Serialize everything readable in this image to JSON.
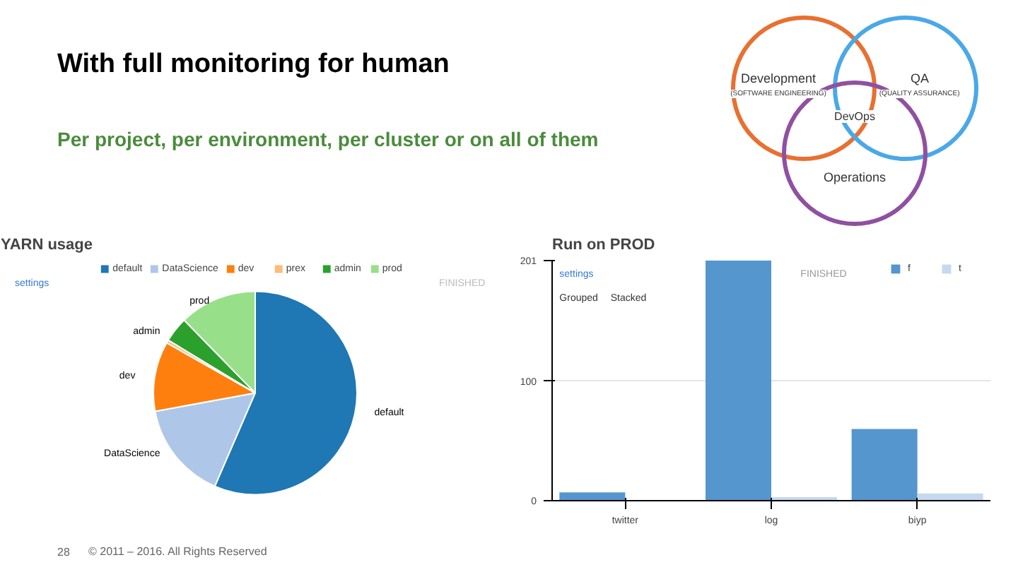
{
  "chart_data": [
    {
      "type": "other",
      "title": "With full monitoring for human",
      "subtitle": "Per project, per environment, per cluster or on all of them",
      "annotations": [
        "Development",
        "(SOFTWARE ENGINEERING)",
        "QA",
        "(QUALITY ASSURANCE)",
        "DevOps",
        "Operations",
        "28",
        "© 2011 – 2016. All Rights Reserved"
      ]
    },
    {
      "type": "pie",
      "title": "YARN usage",
      "categories": [
        "default",
        "DataScience",
        "dev",
        "prex",
        "admin",
        "prod"
      ],
      "values": [
        56.5,
        15.6,
        11.1,
        0.5,
        4.0,
        12.3
      ],
      "colors": [
        "#1f77b4",
        "#aec7e8",
        "#ff7f0e",
        "#ffbb78",
        "#2ca02c",
        "#98df8a"
      ],
      "legend": "top",
      "annotations": [
        "settings",
        "FINISHED"
      ]
    },
    {
      "type": "bar",
      "title": "Run on PROD",
      "categories": [
        "twitter",
        "log",
        "biyp"
      ],
      "series": [
        {
          "name": "f",
          "color": "#5496cd",
          "values": [
            7,
            201,
            60
          ]
        },
        {
          "name": "t",
          "color": "#c6d8ee",
          "values": [
            null,
            3,
            6
          ]
        }
      ],
      "ylim": [
        0,
        201
      ],
      "yticks": [
        0,
        100,
        201
      ],
      "grid": "y",
      "legend": "top right",
      "annotations": [
        "settings",
        "FINISHED",
        "Grouped",
        "Stacked"
      ]
    }
  ]
}
